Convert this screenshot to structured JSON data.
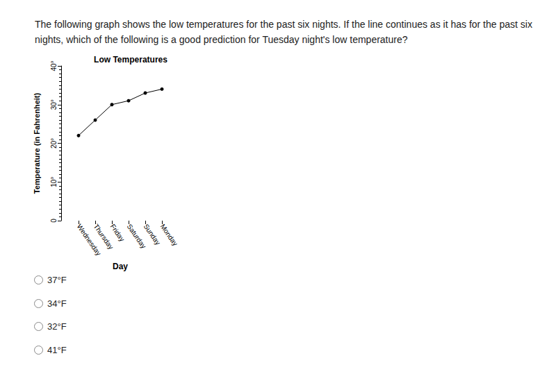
{
  "question": "The following graph shows the low temperatures for the past six nights. If the line continues as it has for the past six nights, which of the following is a good prediction for Tuesday night's low temperature?",
  "options": [
    "37°F",
    "34°F",
    "32°F",
    "41°F"
  ],
  "chart_data": {
    "type": "line",
    "title": "Low Temperatures",
    "x_label": "Day",
    "y_label": "Temperature (in Fahrenheit)",
    "categories": [
      "Wednesday",
      "Thursday",
      "Friday",
      "Saturday",
      "Sunday",
      "Monday"
    ],
    "values": [
      22,
      26,
      30,
      31,
      33,
      34
    ],
    "color": "#000000",
    "marker": "circle",
    "ylim": [
      0,
      40
    ],
    "yticks": [
      0,
      {
        "value": 10,
        "label": "10°"
      },
      {
        "value": 20,
        "label": "20°"
      },
      {
        "value": 30,
        "label": "30°"
      },
      {
        "value": 40,
        "label": "40°"
      }
    ],
    "grid": false
  }
}
